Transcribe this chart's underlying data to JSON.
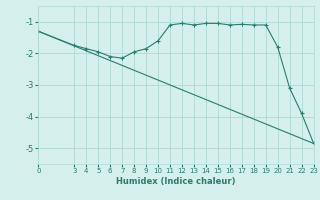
{
  "xlabel": "Humidex (Indice chaleur)",
  "ylabel": "",
  "background_color": "#d4efec",
  "grid_color": "#b0d9d4",
  "line_color": "#2a7d6e",
  "xlim": [
    0,
    23
  ],
  "ylim": [
    -5.5,
    -0.5
  ],
  "yticks": [
    -5,
    -4,
    -3,
    -2,
    -1
  ],
  "xticks": [
    0,
    3,
    4,
    5,
    6,
    7,
    8,
    9,
    10,
    11,
    12,
    13,
    14,
    15,
    16,
    17,
    18,
    19,
    20,
    21,
    22,
    23
  ],
  "line1_x": [
    0,
    3,
    4,
    5,
    6,
    7,
    8,
    9,
    10,
    11,
    12,
    13,
    14,
    15,
    16,
    17,
    18,
    19,
    20,
    21,
    22,
    23
  ],
  "line1_y": [
    -1.3,
    -1.75,
    -1.85,
    -1.95,
    -2.1,
    -2.15,
    -1.95,
    -1.85,
    -1.6,
    -1.1,
    -1.05,
    -1.1,
    -1.05,
    -1.05,
    -1.1,
    -1.08,
    -1.1,
    -1.1,
    -1.8,
    -3.1,
    -3.9,
    -4.85
  ],
  "line2_x": [
    0,
    23
  ],
  "line2_y": [
    -1.3,
    -4.85
  ]
}
